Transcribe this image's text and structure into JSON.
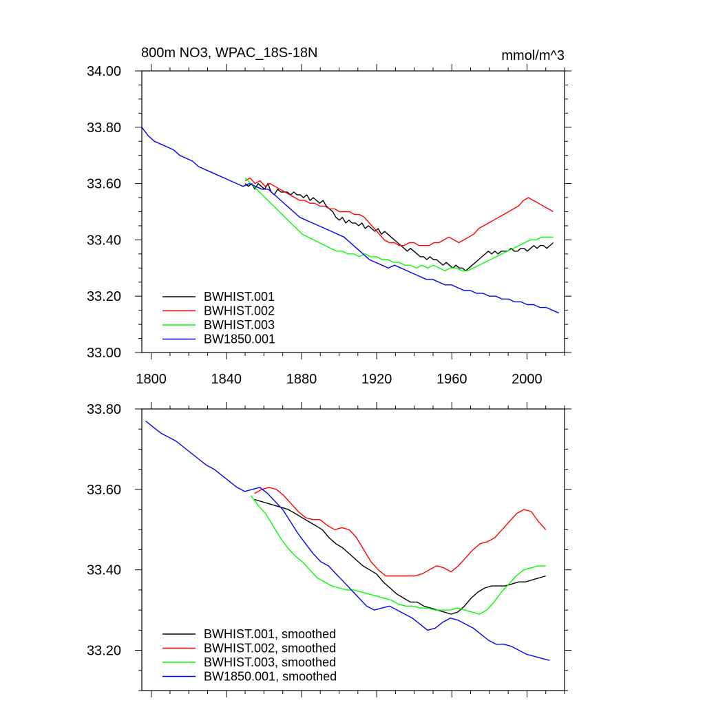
{
  "chart_data": [
    {
      "type": "line",
      "title": "800m NO3, WPAC_18S-18N",
      "units": "mmol/m^3",
      "xlabel": "",
      "ylabel": "",
      "xlim": [
        1795,
        2020
      ],
      "ylim": [
        33.0,
        34.0
      ],
      "x_ticks": [
        "1800",
        "1840",
        "1880",
        "1920",
        "1960",
        "2000"
      ],
      "y_ticks": [
        "33.00",
        "33.20",
        "33.40",
        "33.60",
        "33.80",
        "34.00"
      ],
      "legend_position": "bottom-left",
      "series": [
        {
          "name": "BWHIST.001",
          "color": "#000000",
          "x_start": 1850,
          "x_end": 2014,
          "values": [
            33.6,
            33.59,
            33.6,
            33.58,
            33.6,
            33.59,
            33.58,
            33.6,
            33.57,
            33.56,
            33.58,
            33.57,
            33.57,
            33.57,
            33.56,
            33.57,
            33.56,
            33.56,
            33.55,
            33.56,
            33.54,
            33.55,
            33.54,
            33.53,
            33.54,
            33.52,
            33.51,
            33.5,
            33.48,
            33.47,
            33.48,
            33.46,
            33.47,
            33.46,
            33.46,
            33.45,
            33.46,
            33.44,
            33.45,
            33.44,
            33.43,
            33.44,
            33.42,
            33.43,
            33.42,
            33.41,
            33.4,
            33.39,
            33.38,
            33.37,
            33.36,
            33.37,
            33.36,
            33.35,
            33.34,
            33.34,
            33.33,
            33.34,
            33.33,
            33.33,
            33.32,
            33.31,
            33.32,
            33.31,
            33.3,
            33.31,
            33.3,
            33.3,
            33.29,
            33.3,
            33.31,
            33.32,
            33.33,
            33.34,
            33.35,
            33.36,
            33.35,
            33.36,
            33.35,
            33.36,
            33.36,
            33.36,
            33.37,
            33.36,
            33.36,
            33.37,
            33.37,
            33.36,
            33.37,
            33.38,
            33.37,
            33.38,
            33.38,
            33.37,
            33.38,
            33.39
          ]
        },
        {
          "name": "BWHIST.002",
          "color": "#ff0000",
          "x_start": 1850,
          "x_end": 2014,
          "values": [
            33.61,
            33.62,
            33.6,
            33.61,
            33.59,
            33.6,
            33.59,
            33.58,
            33.57,
            33.56,
            33.55,
            33.54,
            33.54,
            33.53,
            33.53,
            33.52,
            33.52,
            33.51,
            33.51,
            33.5,
            33.5,
            33.5,
            33.49,
            33.49,
            33.48,
            33.46,
            33.44,
            33.42,
            33.4,
            33.39,
            33.39,
            33.38,
            33.38,
            33.39,
            33.39,
            33.38,
            33.38,
            33.38,
            33.39,
            33.39,
            33.4,
            33.41,
            33.4,
            33.39,
            33.4,
            33.41,
            33.42,
            33.44,
            33.45,
            33.46,
            33.47,
            33.48,
            33.49,
            33.5,
            33.51,
            33.52,
            33.54,
            33.55,
            33.54,
            33.53,
            33.52,
            33.51,
            33.5
          ]
        },
        {
          "name": "BWHIST.003",
          "color": "#00ff00",
          "x_start": 1850,
          "x_end": 2014,
          "values": [
            33.62,
            33.6,
            33.58,
            33.56,
            33.54,
            33.52,
            33.5,
            33.48,
            33.46,
            33.44,
            33.42,
            33.41,
            33.4,
            33.39,
            33.38,
            33.37,
            33.36,
            33.36,
            33.35,
            33.35,
            33.34,
            33.35,
            33.34,
            33.34,
            33.33,
            33.33,
            33.32,
            33.32,
            33.31,
            33.31,
            33.3,
            33.31,
            33.3,
            33.31,
            33.3,
            33.29,
            33.3,
            33.3,
            33.29,
            33.29,
            33.3,
            33.31,
            33.32,
            33.33,
            33.34,
            33.35,
            33.36,
            33.37,
            33.38,
            33.39,
            33.4,
            33.4,
            33.41,
            33.41,
            33.41
          ]
        },
        {
          "name": "BW1850.001",
          "color": "#0000ff",
          "x_start": 1795,
          "x_end": 2017,
          "values": [
            33.8,
            33.77,
            33.75,
            33.74,
            33.73,
            33.72,
            33.7,
            33.69,
            33.68,
            33.66,
            33.65,
            33.64,
            33.63,
            33.62,
            33.61,
            33.6,
            33.59,
            33.6,
            33.59,
            33.58,
            33.58,
            33.56,
            33.54,
            33.52,
            33.5,
            33.48,
            33.47,
            33.46,
            33.45,
            33.44,
            33.43,
            33.42,
            33.41,
            33.39,
            33.37,
            33.35,
            33.33,
            33.32,
            33.31,
            33.3,
            33.31,
            33.3,
            33.29,
            33.28,
            33.27,
            33.26,
            33.26,
            33.25,
            33.24,
            33.24,
            33.23,
            33.22,
            33.22,
            33.21,
            33.21,
            33.2,
            33.2,
            33.19,
            33.19,
            33.18,
            33.18,
            33.17,
            33.17,
            33.16,
            33.16,
            33.15,
            33.14
          ]
        }
      ]
    },
    {
      "type": "line",
      "title": "",
      "xlabel": "",
      "ylabel": "",
      "xlim": [
        1795,
        2020
      ],
      "ylim": [
        33.1,
        33.8
      ],
      "y_ticks": [
        "33.20",
        "33.40",
        "33.60",
        "33.80"
      ],
      "legend_position": "bottom-left",
      "series": [
        {
          "name": "BWHIST.001, smoothed",
          "color": "#000000",
          "x_start": 1855,
          "x_end": 2010,
          "values": [
            33.575,
            33.57,
            33.565,
            33.56,
            33.555,
            33.55,
            33.54,
            33.53,
            33.52,
            33.51,
            33.5,
            33.48,
            33.465,
            33.455,
            33.44,
            33.425,
            33.41,
            33.4,
            33.39,
            33.37,
            33.355,
            33.34,
            33.33,
            33.32,
            33.32,
            33.31,
            33.305,
            33.3,
            33.295,
            33.29,
            33.295,
            33.31,
            33.33,
            33.345,
            33.355,
            33.36,
            33.36,
            33.36,
            33.365,
            33.37,
            33.37,
            33.375,
            33.38,
            33.385
          ]
        },
        {
          "name": "BWHIST.002, smoothed",
          "color": "#ff0000",
          "x_start": 1855,
          "x_end": 2010,
          "values": [
            33.59,
            33.6,
            33.605,
            33.6,
            33.585,
            33.565,
            33.545,
            33.53,
            33.525,
            33.525,
            33.51,
            33.5,
            33.505,
            33.5,
            33.48,
            33.45,
            33.42,
            33.4,
            33.385,
            33.385,
            33.385,
            33.385,
            33.385,
            33.39,
            33.4,
            33.41,
            33.405,
            33.395,
            33.41,
            33.43,
            33.45,
            33.465,
            33.47,
            33.48,
            33.5,
            33.52,
            33.54,
            33.55,
            33.545,
            33.52,
            33.5
          ]
        },
        {
          "name": "BWHIST.003, smoothed",
          "color": "#00ff00",
          "x_start": 1853,
          "x_end": 2010,
          "values": [
            33.585,
            33.56,
            33.54,
            33.51,
            33.48,
            33.455,
            33.435,
            33.42,
            33.4,
            33.38,
            33.37,
            33.36,
            33.355,
            33.35,
            33.35,
            33.345,
            33.34,
            33.335,
            33.33,
            33.325,
            33.315,
            33.31,
            33.31,
            33.305,
            33.305,
            33.3,
            33.3,
            33.3,
            33.305,
            33.3,
            33.295,
            33.29,
            33.3,
            33.32,
            33.345,
            33.365,
            33.385,
            33.4,
            33.405,
            33.41,
            33.41
          ]
        },
        {
          "name": "BW1850.001, smoothed",
          "color": "#0000ff",
          "x_start": 1797,
          "x_end": 2012,
          "values": [
            33.77,
            33.755,
            33.74,
            33.73,
            33.72,
            33.705,
            33.69,
            33.675,
            33.66,
            33.65,
            33.635,
            33.62,
            33.605,
            33.595,
            33.6,
            33.605,
            33.59,
            33.57,
            33.55,
            33.52,
            33.49,
            33.465,
            33.44,
            33.42,
            33.41,
            33.39,
            33.37,
            33.35,
            33.33,
            33.31,
            33.3,
            33.305,
            33.31,
            33.3,
            33.29,
            33.28,
            33.265,
            33.25,
            33.255,
            33.27,
            33.28,
            33.275,
            33.265,
            33.255,
            33.24,
            33.225,
            33.215,
            33.215,
            33.21,
            33.2,
            33.19,
            33.185,
            33.18,
            33.175
          ]
        }
      ]
    }
  ]
}
